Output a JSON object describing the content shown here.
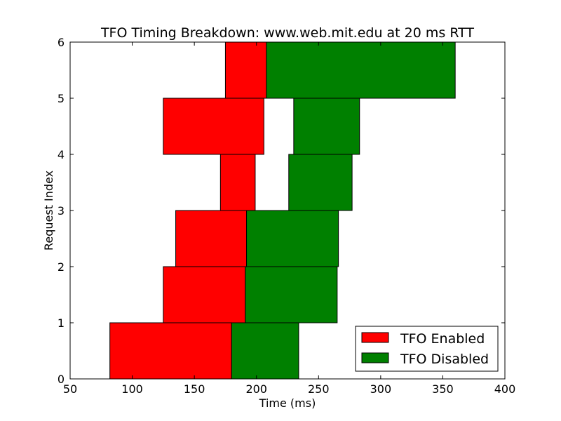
{
  "chart_data": {
    "type": "bar",
    "orientation": "horizontal",
    "title": "TFO Timing Breakdown: www.web.mit.edu at 20 ms RTT",
    "xlabel": "Time (ms)",
    "ylabel": "Request Index",
    "xlim": [
      50,
      400
    ],
    "ylim": [
      0,
      6
    ],
    "xticks": [
      "50",
      "100",
      "150",
      "200",
      "250",
      "300",
      "350",
      "400"
    ],
    "yticks": [
      "0",
      "1",
      "2",
      "3",
      "4",
      "5",
      "6"
    ],
    "grid": false,
    "legend_position": "bottom-right",
    "categories": [
      0,
      1,
      2,
      3,
      4,
      5
    ],
    "series": [
      {
        "name": "TFO Enabled",
        "color": "#ff0000",
        "bars": [
          {
            "index": 0,
            "start": 82,
            "end": 180
          },
          {
            "index": 1,
            "start": 125,
            "end": 191
          },
          {
            "index": 2,
            "start": 135,
            "end": 192
          },
          {
            "index": 3,
            "start": 171,
            "end": 199
          },
          {
            "index": 4,
            "start": 125,
            "end": 206
          },
          {
            "index": 5,
            "start": 175,
            "end": 208
          }
        ]
      },
      {
        "name": "TFO Disabled",
        "color": "#008000",
        "bars": [
          {
            "index": 0,
            "start": 180,
            "end": 234
          },
          {
            "index": 1,
            "start": 191,
            "end": 265
          },
          {
            "index": 2,
            "start": 192,
            "end": 266
          },
          {
            "index": 3,
            "start": 226,
            "end": 277
          },
          {
            "index": 4,
            "start": 230,
            "end": 283
          },
          {
            "index": 5,
            "start": 208,
            "end": 360
          }
        ]
      }
    ]
  }
}
